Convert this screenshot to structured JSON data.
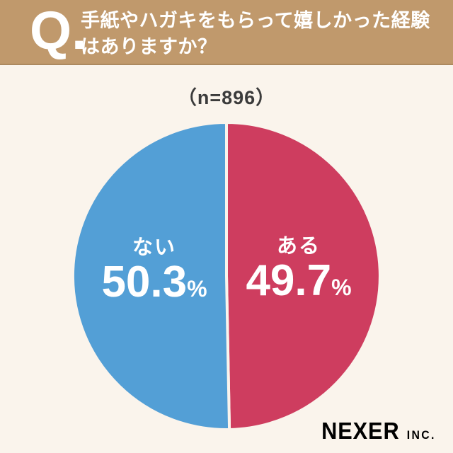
{
  "header": {
    "q_label": "Q.",
    "question_line1": "手紙やハガキをもらって嬉しかった経験",
    "question_line2": "はありますか？",
    "bg_color": "#c0996c",
    "text_color": "#ffffff"
  },
  "sample_note": "（n=896）",
  "chart_data": {
    "type": "pie",
    "title": "手紙やハガキをもらって嬉しかった経験はありますか？",
    "sample_note": "（n=896）",
    "n": 896,
    "start_angle": "top",
    "direction": "clockwise",
    "gap_color": "#faf4ec",
    "slices": [
      {
        "label": "ある",
        "value": 49.7,
        "display": "49.7",
        "unit": "%",
        "color": "#ce3d5f"
      },
      {
        "label": "ない",
        "value": 50.3,
        "display": "50.3",
        "unit": "%",
        "color": "#539fd6"
      }
    ]
  },
  "footer": {
    "brand": "NEXER",
    "brand_suffix": "INC.",
    "color": "#1d2c4a"
  },
  "background_color": "#faf4ec"
}
